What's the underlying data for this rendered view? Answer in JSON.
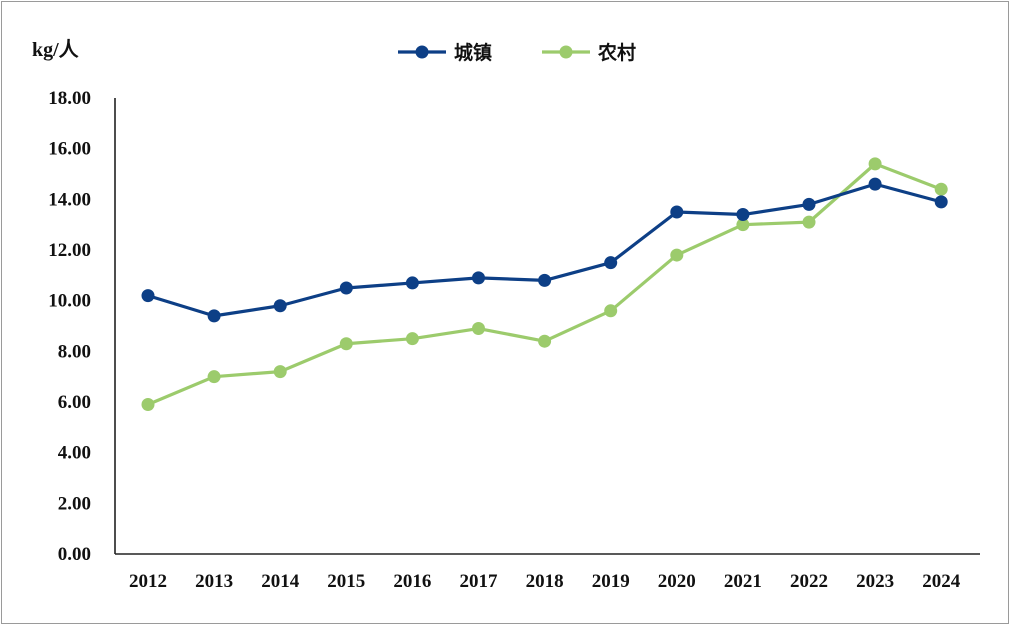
{
  "chart_data": {
    "type": "line",
    "ylabel": "kg/人",
    "ylim": [
      0,
      18
    ],
    "yticks": [
      "0.00",
      "2.00",
      "4.00",
      "6.00",
      "8.00",
      "10.00",
      "12.00",
      "14.00",
      "16.00",
      "18.00"
    ],
    "x": [
      "2012",
      "2013",
      "2014",
      "2015",
      "2016",
      "2017",
      "2018",
      "2019",
      "2020",
      "2021",
      "2022",
      "2023",
      "2024"
    ],
    "legend_position": "top-center",
    "grid": false,
    "series": [
      {
        "name": "城镇",
        "color": "#0d3f86",
        "values": [
          10.2,
          9.4,
          9.8,
          10.5,
          10.7,
          10.9,
          10.8,
          11.5,
          13.5,
          13.4,
          13.8,
          14.6,
          13.9
        ]
      },
      {
        "name": "农村",
        "color": "#9ccb6c",
        "values": [
          5.9,
          7.0,
          7.2,
          8.3,
          8.5,
          8.9,
          8.4,
          9.6,
          11.8,
          13.0,
          13.1,
          15.4,
          14.4
        ]
      }
    ]
  }
}
